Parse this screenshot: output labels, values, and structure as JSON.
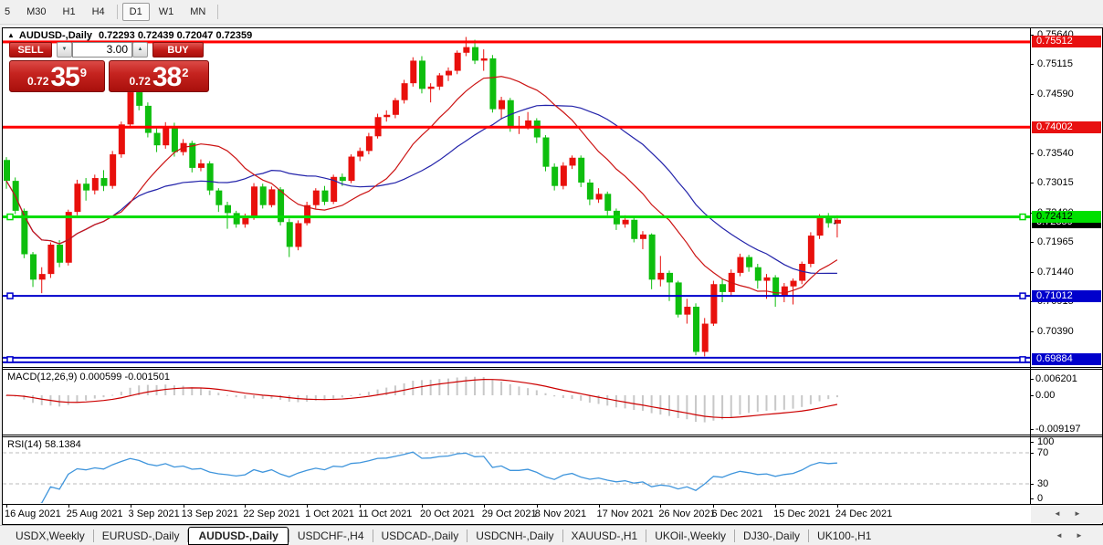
{
  "toolbar": {
    "timeframes": [
      "5",
      "M30",
      "H1",
      "H4",
      "D1",
      "W1",
      "MN"
    ],
    "active": "D1"
  },
  "window": {
    "title_symbol": "AUDUSD-,Daily",
    "title_ohlc": "0.72293 0.72439 0.72047 0.72359",
    "trade_panel": {
      "sell_label": "SELL",
      "buy_label": "BUY",
      "volume": "3.00",
      "sell_price": {
        "small": "0.72",
        "big": "35",
        "sup": "9"
      },
      "buy_price": {
        "small": "0.72",
        "big": "38",
        "sup": "2"
      }
    }
  },
  "chart_data": {
    "type": "candlestick",
    "symbol": "AUDUSD-",
    "timeframe": "Daily",
    "title": "AUDUSD-,Daily 0.72293 0.72439 0.72047 0.72359",
    "last_ohlc": {
      "open": 0.72293,
      "high": 0.72439,
      "low": 0.72047,
      "close": 0.72359
    },
    "current_price": 0.72359,
    "up_color": "#e8100c",
    "down_color": "#0ebe0e",
    "price_axis_ticks": [
      0.7564,
      0.75115,
      0.7459,
      0.7354,
      0.73015,
      0.7249,
      0.71965,
      0.7144,
      0.70915,
      0.7039
    ],
    "horizontal_lines": [
      {
        "price": 0.75512,
        "color": "#ff0000",
        "thickness": 3,
        "selected": false,
        "double": false
      },
      {
        "price": 0.74002,
        "color": "#ff0000",
        "thickness": 3,
        "selected": false,
        "double": false
      },
      {
        "price": 0.72412,
        "color": "#00dd00",
        "thickness": 3,
        "selected": true,
        "double": false
      },
      {
        "price": 0.71012,
        "color": "#0000cc",
        "thickness": 2,
        "selected": true,
        "double": false
      },
      {
        "price": 0.69884,
        "color": "#0000cc",
        "thickness": 2,
        "selected": true,
        "double": true
      }
    ],
    "x_labels": [
      {
        "label": "16 Aug 2021",
        "i": 0
      },
      {
        "label": "25 Aug 2021",
        "i": 7
      },
      {
        "label": "3 Sep 2021",
        "i": 14
      },
      {
        "label": "13 Sep 2021",
        "i": 20
      },
      {
        "label": "22 Sep 2021",
        "i": 27
      },
      {
        "label": "1 Oct 2021",
        "i": 34
      },
      {
        "label": "11 Oct 2021",
        "i": 40
      },
      {
        "label": "20 Oct 2021",
        "i": 47
      },
      {
        "label": "29 Oct 2021",
        "i": 54
      },
      {
        "label": "8 Nov 2021",
        "i": 60
      },
      {
        "label": "17 Nov 2021",
        "i": 67
      },
      {
        "label": "26 Nov 2021",
        "i": 74
      },
      {
        "label": "6 Dec 2021",
        "i": 80
      },
      {
        "label": "15 Dec 2021",
        "i": 87
      },
      {
        "label": "24 Dec 2021",
        "i": 94
      }
    ],
    "candles": [
      [
        0.7342,
        0.7347,
        0.7291,
        0.7305
      ],
      [
        0.7305,
        0.7311,
        0.7246,
        0.7252
      ],
      [
        0.7252,
        0.7256,
        0.7168,
        0.7175
      ],
      [
        0.7175,
        0.7179,
        0.7117,
        0.713
      ],
      [
        0.713,
        0.7152,
        0.7106,
        0.714
      ],
      [
        0.714,
        0.7196,
        0.7133,
        0.7192
      ],
      [
        0.7192,
        0.72,
        0.7152,
        0.716
      ],
      [
        0.716,
        0.7254,
        0.7155,
        0.725
      ],
      [
        0.725,
        0.7307,
        0.7244,
        0.73
      ],
      [
        0.73,
        0.731,
        0.727,
        0.7288
      ],
      [
        0.7288,
        0.7316,
        0.7281,
        0.731
      ],
      [
        0.731,
        0.7324,
        0.7287,
        0.7296
      ],
      [
        0.7296,
        0.7358,
        0.7291,
        0.7352
      ],
      [
        0.7352,
        0.741,
        0.7346,
        0.7405
      ],
      [
        0.7405,
        0.7478,
        0.74,
        0.7462
      ],
      [
        0.7462,
        0.7468,
        0.743,
        0.7438
      ],
      [
        0.7438,
        0.7444,
        0.7382,
        0.739
      ],
      [
        0.739,
        0.7398,
        0.7356,
        0.7368
      ],
      [
        0.7368,
        0.7409,
        0.7362,
        0.7402
      ],
      [
        0.7402,
        0.7408,
        0.7348,
        0.7356
      ],
      [
        0.7356,
        0.7379,
        0.735,
        0.7372
      ],
      [
        0.7372,
        0.7376,
        0.732,
        0.7328
      ],
      [
        0.7328,
        0.7343,
        0.7322,
        0.7336
      ],
      [
        0.7336,
        0.734,
        0.728,
        0.7288
      ],
      [
        0.7288,
        0.7292,
        0.725,
        0.7262
      ],
      [
        0.7262,
        0.7268,
        0.722,
        0.7248
      ],
      [
        0.7248,
        0.7252,
        0.7222,
        0.7228
      ],
      [
        0.7228,
        0.7247,
        0.7222,
        0.724
      ],
      [
        0.724,
        0.7301,
        0.7236,
        0.7295
      ],
      [
        0.7295,
        0.73,
        0.7256,
        0.7262
      ],
      [
        0.7262,
        0.7295,
        0.7258,
        0.729
      ],
      [
        0.729,
        0.7294,
        0.7226,
        0.7232
      ],
      [
        0.7232,
        0.7238,
        0.717,
        0.7188
      ],
      [
        0.7188,
        0.7235,
        0.7182,
        0.723
      ],
      [
        0.723,
        0.7268,
        0.7226,
        0.7262
      ],
      [
        0.7262,
        0.7292,
        0.7256,
        0.7288
      ],
      [
        0.7288,
        0.7296,
        0.7262,
        0.7268
      ],
      [
        0.7268,
        0.7316,
        0.7264,
        0.7312
      ],
      [
        0.7312,
        0.7318,
        0.7296,
        0.7305
      ],
      [
        0.7305,
        0.7352,
        0.7301,
        0.7348
      ],
      [
        0.7348,
        0.7364,
        0.734,
        0.7358
      ],
      [
        0.7358,
        0.739,
        0.7352,
        0.7384
      ],
      [
        0.7384,
        0.7424,
        0.738,
        0.7418
      ],
      [
        0.7418,
        0.743,
        0.741,
        0.7422
      ],
      [
        0.7422,
        0.7452,
        0.7416,
        0.7448
      ],
      [
        0.7448,
        0.7484,
        0.7442,
        0.7478
      ],
      [
        0.7478,
        0.7524,
        0.7472,
        0.7518
      ],
      [
        0.7518,
        0.7526,
        0.746,
        0.7468
      ],
      [
        0.7468,
        0.7478,
        0.7444,
        0.7472
      ],
      [
        0.7472,
        0.7496,
        0.7466,
        0.7492
      ],
      [
        0.7492,
        0.7506,
        0.7482,
        0.75
      ],
      [
        0.75,
        0.7536,
        0.7494,
        0.7532
      ],
      [
        0.7532,
        0.756,
        0.7526,
        0.7542
      ],
      [
        0.7542,
        0.7555,
        0.7512,
        0.7518
      ],
      [
        0.7518,
        0.7538,
        0.75,
        0.7522
      ],
      [
        0.7522,
        0.7528,
        0.7426,
        0.7432
      ],
      [
        0.7432,
        0.7454,
        0.7414,
        0.7448
      ],
      [
        0.7448,
        0.7452,
        0.7392,
        0.7402
      ],
      [
        0.7402,
        0.742,
        0.7388,
        0.7402
      ],
      [
        0.7402,
        0.7427,
        0.7396,
        0.7412
      ],
      [
        0.7412,
        0.7416,
        0.7372,
        0.7382
      ],
      [
        0.7382,
        0.7386,
        0.7322,
        0.733
      ],
      [
        0.733,
        0.7336,
        0.7288,
        0.7296
      ],
      [
        0.7296,
        0.7338,
        0.729,
        0.7332
      ],
      [
        0.7332,
        0.735,
        0.7326,
        0.7346
      ],
      [
        0.7346,
        0.735,
        0.7294,
        0.7302
      ],
      [
        0.7302,
        0.7308,
        0.7262,
        0.7272
      ],
      [
        0.7272,
        0.7292,
        0.7266,
        0.7282
      ],
      [
        0.7282,
        0.7286,
        0.7244,
        0.7252
      ],
      [
        0.7252,
        0.7256,
        0.7218,
        0.7228
      ],
      [
        0.7228,
        0.7244,
        0.7222,
        0.7236
      ],
      [
        0.7236,
        0.724,
        0.7196,
        0.7202
      ],
      [
        0.7202,
        0.7216,
        0.7184,
        0.721
      ],
      [
        0.721,
        0.7212,
        0.7113,
        0.713
      ],
      [
        0.713,
        0.7172,
        0.7118,
        0.7142
      ],
      [
        0.7142,
        0.7146,
        0.7092,
        0.7125
      ],
      [
        0.7125,
        0.7128,
        0.7063,
        0.7068
      ],
      [
        0.7068,
        0.7096,
        0.7052,
        0.7082
      ],
      [
        0.7082,
        0.7088,
        0.6996,
        0.7002
      ],
      [
        0.7002,
        0.7062,
        0.6994,
        0.7052
      ],
      [
        0.7052,
        0.7128,
        0.7048,
        0.7122
      ],
      [
        0.7122,
        0.7132,
        0.709,
        0.7108
      ],
      [
        0.7108,
        0.7148,
        0.7102,
        0.7142
      ],
      [
        0.7142,
        0.7176,
        0.7136,
        0.717
      ],
      [
        0.717,
        0.7174,
        0.7144,
        0.7152
      ],
      [
        0.7152,
        0.7158,
        0.7114,
        0.7128
      ],
      [
        0.7128,
        0.714,
        0.7096,
        0.7134
      ],
      [
        0.7134,
        0.7138,
        0.7082,
        0.7102
      ],
      [
        0.7102,
        0.7124,
        0.709,
        0.7118
      ],
      [
        0.7118,
        0.7132,
        0.7086,
        0.7128
      ],
      [
        0.7128,
        0.7162,
        0.7122,
        0.7158
      ],
      [
        0.7158,
        0.7214,
        0.7152,
        0.7208
      ],
      [
        0.7208,
        0.7246,
        0.7202,
        0.724
      ],
      [
        0.724,
        0.7248,
        0.7222,
        0.723
      ],
      [
        0.72293,
        0.72439,
        0.72047,
        0.72359
      ]
    ],
    "ma_fast": {
      "period": 13,
      "color": "#cc1414"
    },
    "ma_slow": {
      "period": 24,
      "color": "#2323aa"
    },
    "macd": {
      "label": "MACD(12,26,9)",
      "value_main": "0.000599",
      "value_signal": "-0.001501",
      "axis_max": "0.006201",
      "axis_zero": "0.00",
      "axis_min": "-0.009197",
      "histogram_color": "#c8c8c8",
      "signal_color": "#cc0000"
    },
    "rsi": {
      "label": "RSI(14)",
      "value": "58.1384",
      "axis": [
        "100",
        "70",
        "30",
        "0"
      ],
      "levels": [
        70,
        30
      ],
      "color": "#3f95dc"
    }
  },
  "bottom_tabs": {
    "items": [
      "USDX,Weekly",
      "EURUSD-,Daily",
      "AUDUSD-,Daily",
      "USDCHF-,H4",
      "USDCAD-,Daily",
      "USDCNH-,Daily",
      "XAUUSD-,H1",
      "UKOil-,Weekly",
      "DJ30-,Daily",
      "UK100-,H1"
    ],
    "active_index": 2
  }
}
